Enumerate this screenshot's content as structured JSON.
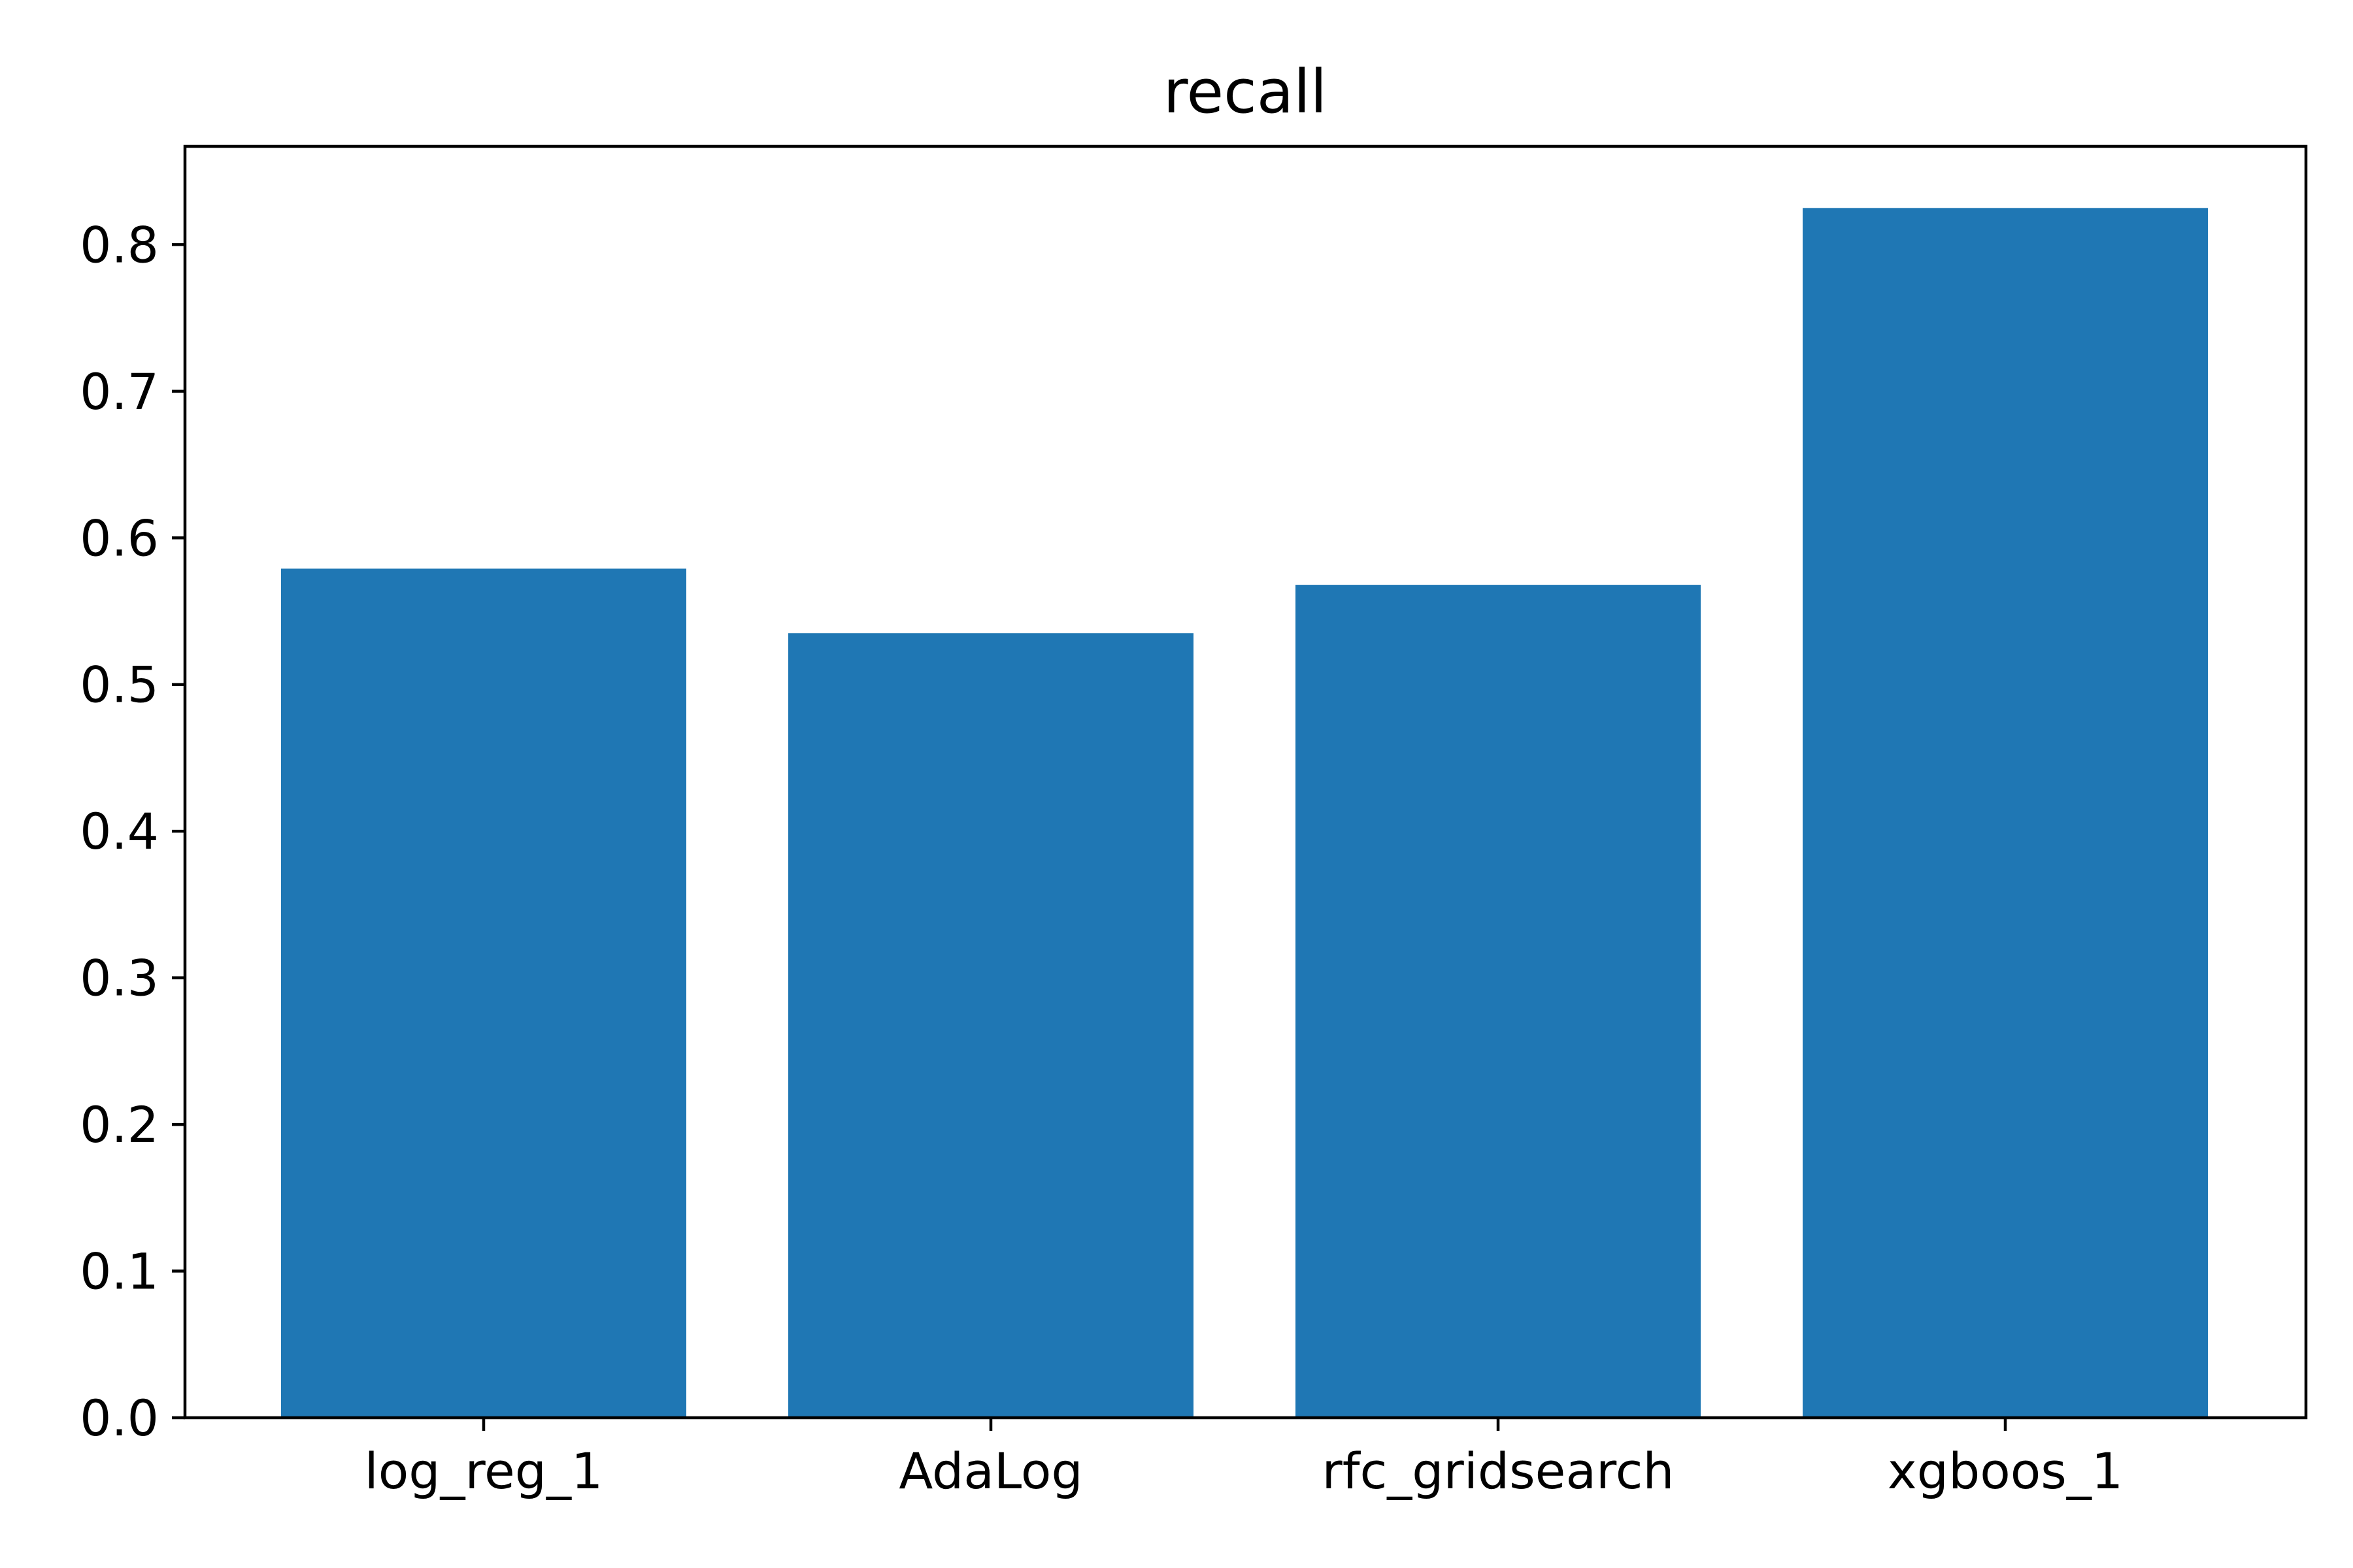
{
  "chart_data": {
    "type": "bar",
    "title": "recall",
    "xlabel": "",
    "ylabel": "",
    "categories": [
      "log_reg_1",
      "AdaLog",
      "rfc_gridsearch",
      "xgboos_1"
    ],
    "values": [
      0.579,
      0.535,
      0.568,
      0.825
    ],
    "ylim": [
      0,
      0.867
    ],
    "yticks": [
      0.0,
      0.1,
      0.2,
      0.3,
      0.4,
      0.5,
      0.6,
      0.7,
      0.8
    ],
    "ytick_labels": [
      "0.0",
      "0.1",
      "0.2",
      "0.3",
      "0.4",
      "0.5",
      "0.6",
      "0.7",
      "0.8"
    ],
    "grid": false,
    "legend": "none",
    "colors": {
      "bar": "#1f77b4",
      "axes": "#000000",
      "background": "#ffffff"
    }
  }
}
